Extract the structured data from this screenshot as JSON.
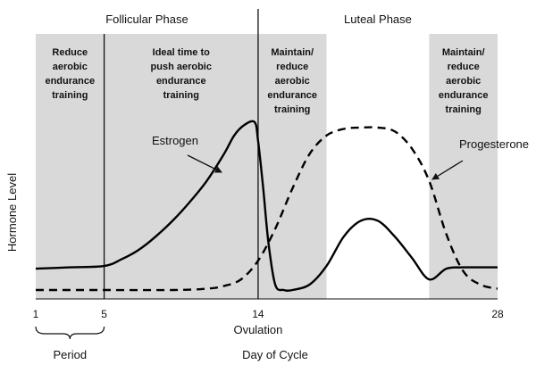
{
  "chart_data": {
    "type": "line",
    "title": "",
    "xlabel": "Day of Cycle",
    "ylabel": "Hormone Level",
    "xlim": [
      1,
      28
    ],
    "x_ticks": [
      "1",
      "5",
      "14",
      "28"
    ],
    "grid": false,
    "phases": [
      {
        "name": "Follicular Phase",
        "x_start": 1,
        "x_end": 14
      },
      {
        "name": "Luteal Phase",
        "x_start": 14,
        "x_end": 28
      }
    ],
    "markers": [
      {
        "x": 5,
        "label": ""
      },
      {
        "x": 14,
        "label": "Ovulation"
      }
    ],
    "period": {
      "x_start": 1,
      "x_end": 5,
      "label": "Period"
    },
    "shaded_regions": [
      {
        "x_start": 1,
        "x_end": 5,
        "lines": [
          "Reduce",
          "aerobic",
          "endurance",
          "training"
        ]
      },
      {
        "x_start": 5,
        "x_end": 14,
        "lines": [
          "Ideal time to",
          "push aerobic",
          "endurance",
          "training"
        ]
      },
      {
        "x_start": 14,
        "x_end": 18,
        "lines": [
          "Maintain/",
          "reduce",
          "aerobic",
          "endurance",
          "training"
        ]
      },
      {
        "x_start": 24,
        "x_end": 28,
        "lines": [
          "Maintain/",
          "reduce",
          "aerobic",
          "endurance",
          "training"
        ]
      }
    ],
    "series": [
      {
        "name": "Estrogen",
        "style": "solid",
        "x": [
          1,
          3,
          5,
          6,
          7,
          8,
          9,
          10,
          11,
          12,
          12.6,
          13.2,
          13.8,
          14.0,
          14.3,
          14.6,
          15.0,
          15.5,
          16,
          17,
          18,
          19,
          20,
          21,
          22,
          23,
          24,
          25,
          26,
          27,
          28
        ],
        "y": [
          0.12,
          0.125,
          0.13,
          0.155,
          0.19,
          0.24,
          0.3,
          0.37,
          0.45,
          0.55,
          0.62,
          0.66,
          0.67,
          0.6,
          0.42,
          0.22,
          0.06,
          0.04,
          0.04,
          0.06,
          0.13,
          0.24,
          0.3,
          0.3,
          0.24,
          0.16,
          0.08,
          0.12,
          0.125,
          0.125,
          0.125
        ]
      },
      {
        "name": "Progesterone",
        "style": "dashed",
        "x": [
          1,
          5,
          9,
          11,
          12,
          13,
          14,
          15,
          16,
          17,
          18,
          19,
          20,
          21,
          22,
          23,
          24,
          25,
          26,
          27,
          28
        ],
        "y": [
          0.04,
          0.04,
          0.04,
          0.045,
          0.055,
          0.08,
          0.15,
          0.27,
          0.42,
          0.55,
          0.62,
          0.645,
          0.65,
          0.65,
          0.635,
          0.57,
          0.45,
          0.25,
          0.11,
          0.06,
          0.045
        ]
      }
    ],
    "series_labels": [
      {
        "name": "Estrogen",
        "text": "Estrogen"
      },
      {
        "name": "Progesterone",
        "text": "Progesterone"
      }
    ]
  }
}
